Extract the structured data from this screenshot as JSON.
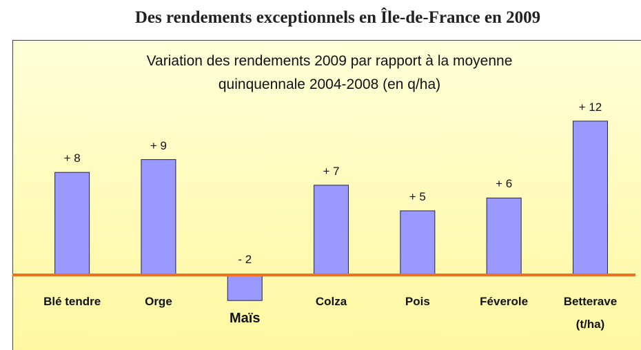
{
  "chart_data": {
    "type": "bar",
    "title": "Des rendements exceptionnels en Île-de-France en 2009",
    "subtitle": "Variation des rendements 2009 par rapport à la moyenne quinquennale 2004-2008 (en q/ha)",
    "categories": [
      "Blé tendre",
      "Orge",
      "Maïs",
      "Colza",
      "Pois",
      "Féverole",
      "Betterave (t/ha)"
    ],
    "values": [
      8,
      9,
      -2,
      7,
      5,
      6,
      12
    ],
    "value_labels": [
      "+ 8",
      "+ 9",
      "- 2",
      "+ 7",
      "+ 5",
      "+ 6",
      "+ 12"
    ],
    "color": "#9999ff"
  }
}
